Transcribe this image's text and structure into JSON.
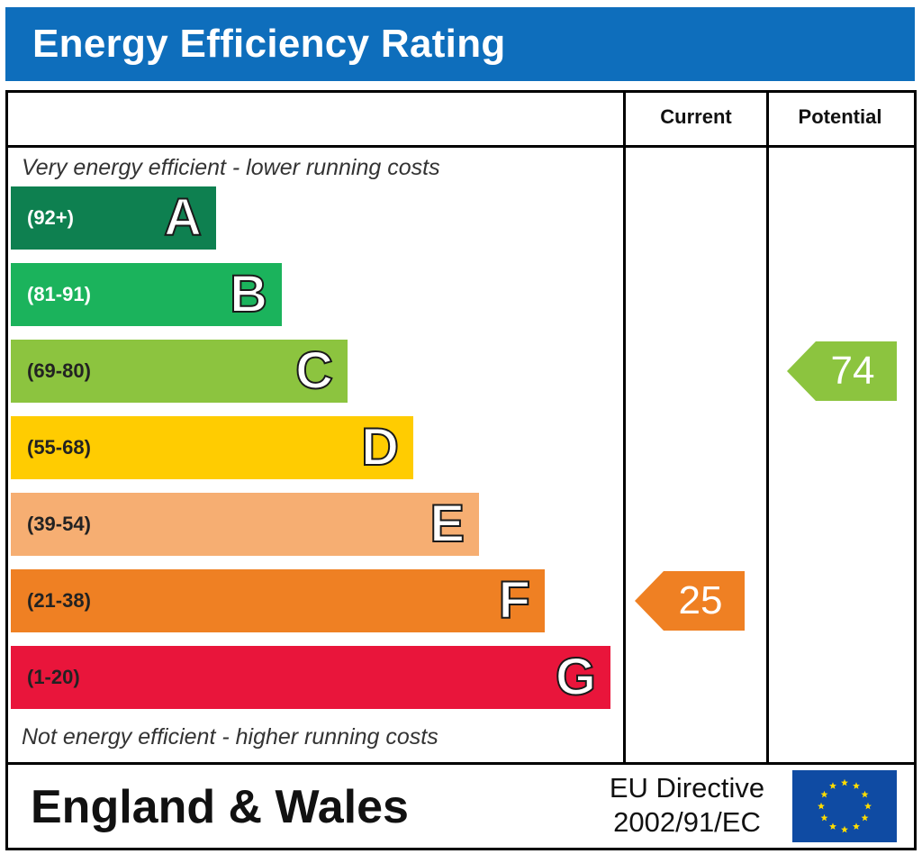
{
  "title": "Energy Efficiency Rating",
  "columns": {
    "current": "Current",
    "potential": "Potential"
  },
  "top_caption": "Very energy efficient - lower running costs",
  "bottom_caption": "Not energy efficient - higher running costs",
  "colors": {
    "header": "#0e6ebc",
    "A": "#0e8050",
    "B": "#1bb35c",
    "C": "#8cc43f",
    "D": "#ffcc01",
    "E": "#f6ae72",
    "F": "#ef8023",
    "G": "#e9153b",
    "eu_flag": "#0f4ba3",
    "eu_stars": "#ffdd00"
  },
  "chart_data": {
    "type": "bar",
    "categories": [
      "A",
      "B",
      "C",
      "D",
      "E",
      "F",
      "G"
    ],
    "bands": [
      {
        "letter": "A",
        "range": "(92+)",
        "min": 92,
        "max": 100
      },
      {
        "letter": "B",
        "range": "(81-91)",
        "min": 81,
        "max": 91
      },
      {
        "letter": "C",
        "range": "(69-80)",
        "min": 69,
        "max": 80
      },
      {
        "letter": "D",
        "range": "(55-68)",
        "min": 55,
        "max": 68
      },
      {
        "letter": "E",
        "range": "(39-54)",
        "min": 39,
        "max": 54
      },
      {
        "letter": "F",
        "range": "(21-38)",
        "min": 21,
        "max": 38
      },
      {
        "letter": "G",
        "range": "(1-20)",
        "min": 1,
        "max": 20
      }
    ],
    "current": {
      "value": 25,
      "band": "F"
    },
    "potential": {
      "value": 74,
      "band": "C"
    }
  },
  "footer": {
    "region": "England & Wales",
    "directive_line1": "EU Directive",
    "directive_line2": "2002/91/EC"
  }
}
